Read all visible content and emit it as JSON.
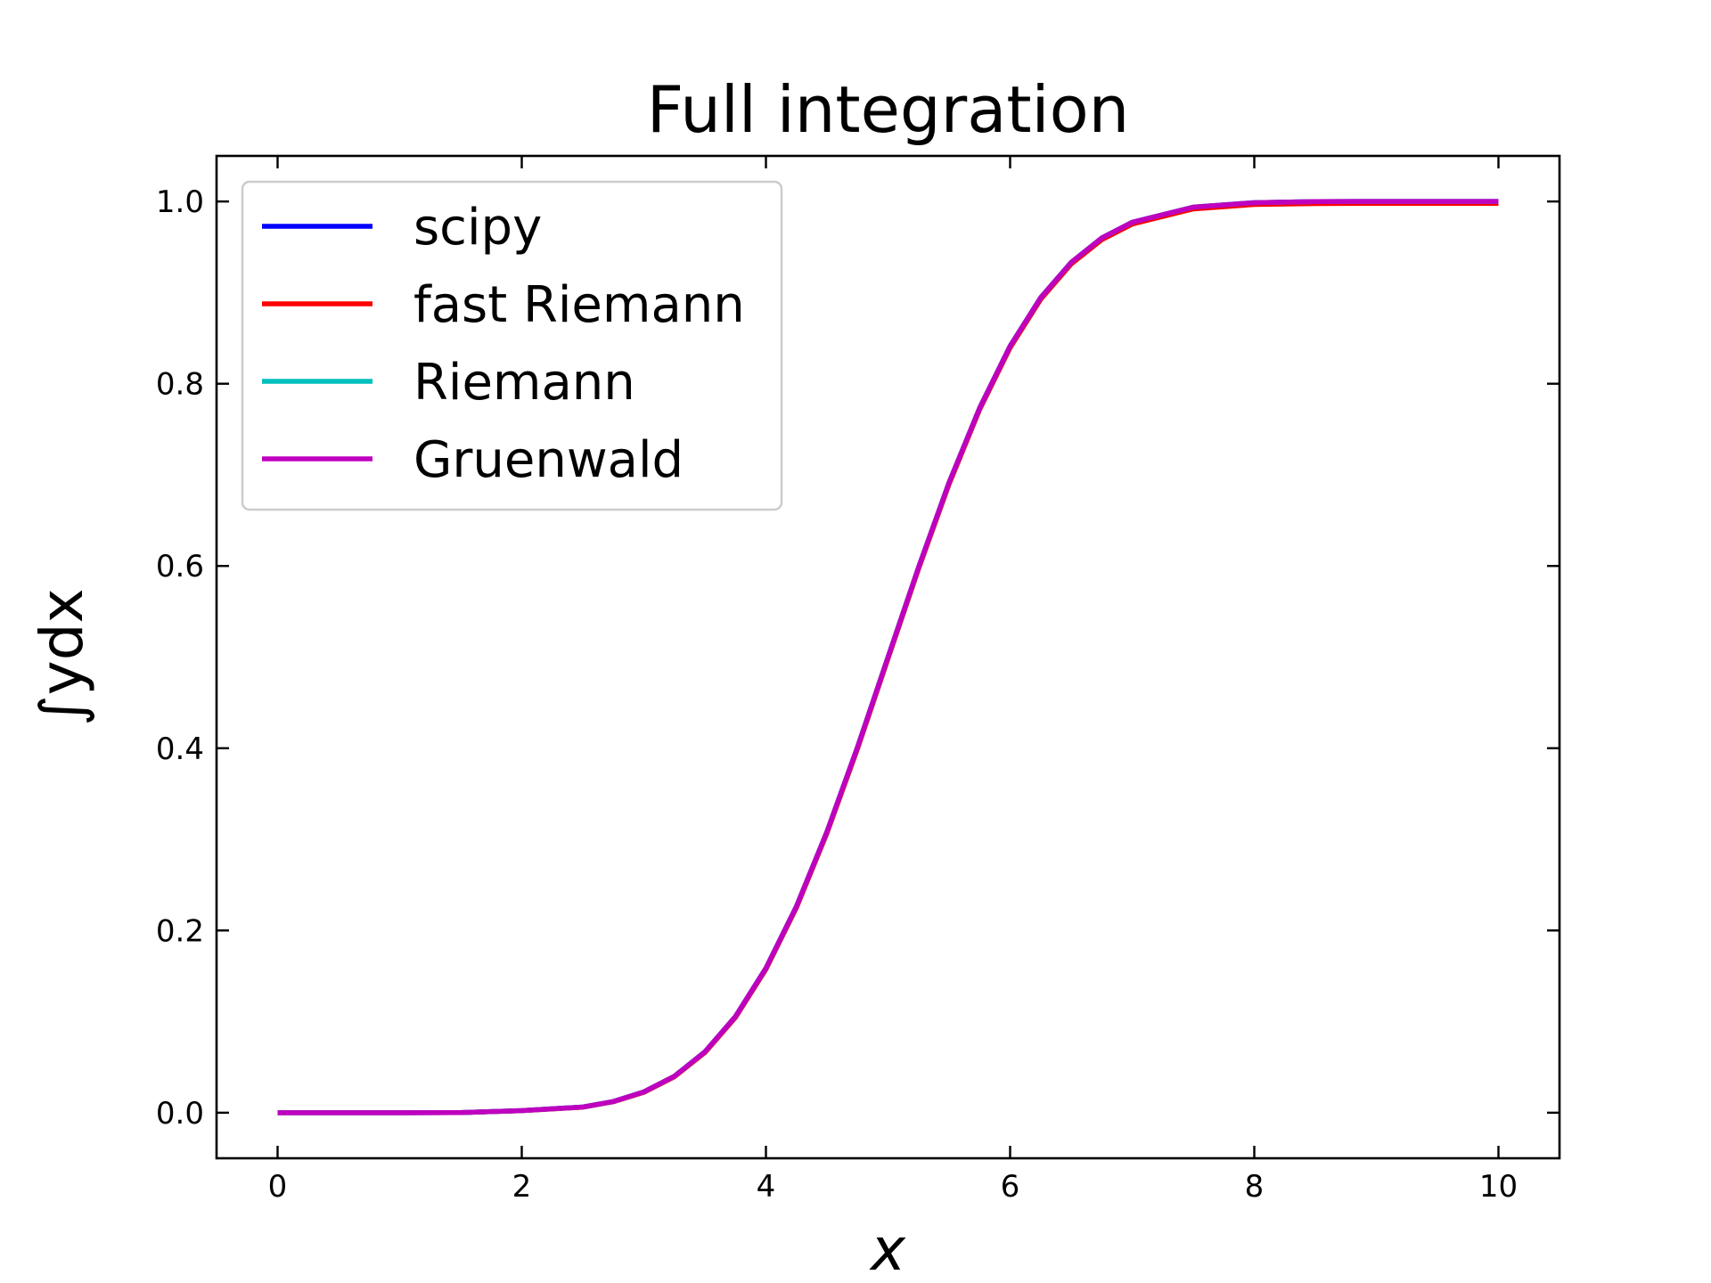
{
  "chart_data": {
    "type": "line",
    "title": "Full integration",
    "xlabel": "x",
    "ylabel": "∫ydx",
    "xlim": [
      -0.5,
      10.5
    ],
    "ylim": [
      -0.05,
      1.05
    ],
    "xticks": [
      0,
      2,
      4,
      6,
      8,
      10
    ],
    "xtick_labels": [
      "0",
      "2",
      "4",
      "6",
      "8",
      "10"
    ],
    "yticks": [
      0.0,
      0.2,
      0.4,
      0.6,
      0.8,
      1.0
    ],
    "ytick_labels": [
      "0.0",
      "0.2",
      "0.4",
      "0.6",
      "0.8",
      "1.0"
    ],
    "grid": false,
    "legend_position": "top-left",
    "x": [
      0,
      0.5,
      1,
      1.5,
      2,
      2.5,
      2.75,
      3,
      3.25,
      3.5,
      3.75,
      4,
      4.25,
      4.5,
      4.75,
      5,
      5.25,
      5.5,
      5.75,
      6,
      6.25,
      6.5,
      6.75,
      7,
      7.5,
      8,
      8.5,
      9,
      9.5,
      10
    ],
    "series": [
      {
        "name": "scipy",
        "color": "#0000ff",
        "values": [
          0.0,
          0.0,
          0.0,
          0.0002,
          0.0023,
          0.0062,
          0.0123,
          0.0228,
          0.0401,
          0.0668,
          0.1056,
          0.1587,
          0.2266,
          0.3085,
          0.4013,
          0.5,
          0.5987,
          0.6915,
          0.7734,
          0.8413,
          0.8944,
          0.9332,
          0.9599,
          0.9772,
          0.9938,
          0.9987,
          0.9998,
          1.0,
          1.0,
          1.0
        ]
      },
      {
        "name": "fast Riemann",
        "color": "#ff0000",
        "values": [
          0.0,
          0.0,
          0.0,
          0.0002,
          0.0022,
          0.006,
          0.012,
          0.0224,
          0.0395,
          0.066,
          0.1045,
          0.1574,
          0.2251,
          0.3068,
          0.3995,
          0.4982,
          0.5969,
          0.6897,
          0.7716,
          0.8395,
          0.8926,
          0.9314,
          0.958,
          0.9752,
          0.9918,
          0.9967,
          0.9977,
          0.998,
          0.998,
          0.998
        ]
      },
      {
        "name": "Riemann",
        "color": "#00bfbf",
        "values": [
          0.0,
          0.0,
          0.0,
          0.0002,
          0.0023,
          0.0062,
          0.0123,
          0.0228,
          0.0401,
          0.0668,
          0.1056,
          0.1587,
          0.2266,
          0.3085,
          0.4013,
          0.5,
          0.5987,
          0.6915,
          0.7734,
          0.8413,
          0.8944,
          0.9332,
          0.9599,
          0.9772,
          0.9938,
          0.9987,
          0.9998,
          1.0,
          1.0,
          1.0
        ]
      },
      {
        "name": "Gruenwald",
        "color": "#bf00bf",
        "values": [
          0.0,
          0.0,
          0.0,
          0.0002,
          0.0023,
          0.0062,
          0.0123,
          0.0228,
          0.0401,
          0.0668,
          0.1056,
          0.1587,
          0.2266,
          0.3085,
          0.4013,
          0.5,
          0.5987,
          0.6915,
          0.7734,
          0.8413,
          0.8944,
          0.9332,
          0.9599,
          0.9772,
          0.9938,
          0.9987,
          0.9998,
          1.0,
          1.0,
          1.0
        ]
      }
    ]
  }
}
